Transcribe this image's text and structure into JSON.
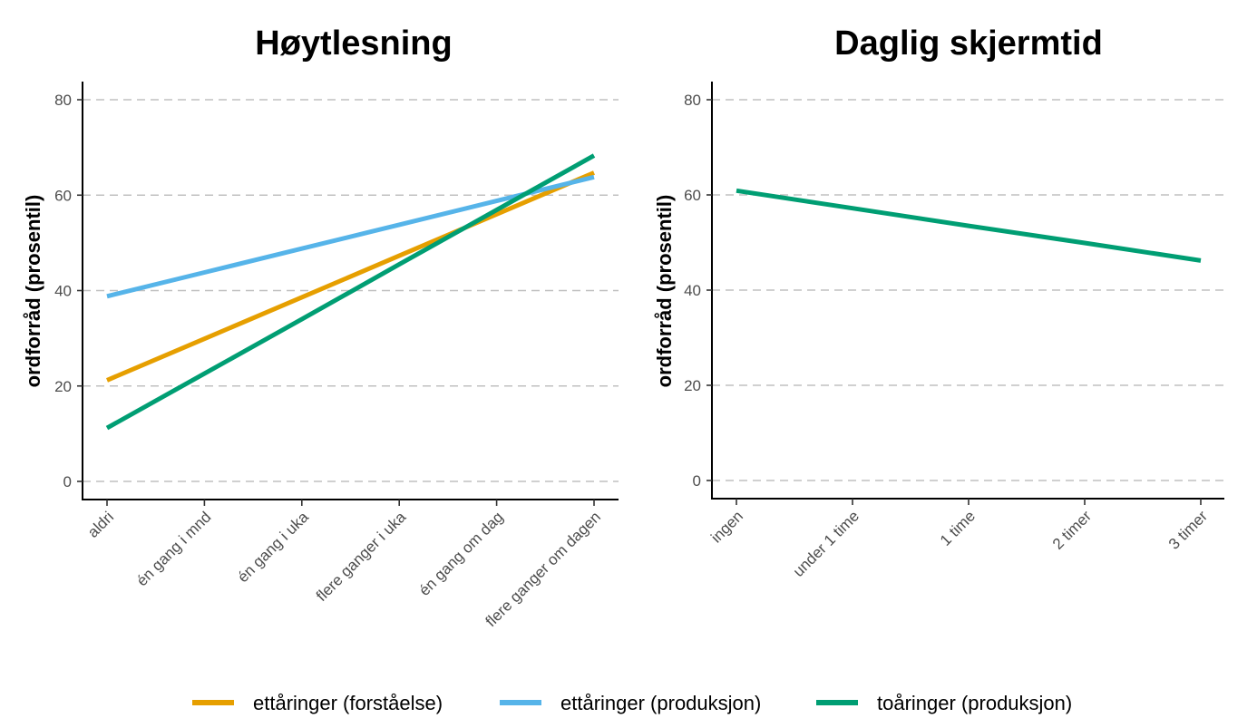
{
  "chart_data": [
    {
      "type": "line",
      "title": "Høytlesning",
      "xlabel": "",
      "ylabel": "ordforråd (prosentil)",
      "ylim": [
        0,
        80
      ],
      "yticks": [
        0,
        20,
        40,
        60,
        80
      ],
      "categories": [
        "aldri",
        "én gang i mnd",
        "én gang i uka",
        "flere ganger i uka",
        "én gang om dag",
        "flere ganger om dagen"
      ],
      "grid": "horizontal dashed",
      "series": [
        {
          "name": "ettåringer (forståelse)",
          "color": "#E69F00",
          "values": [
            21.2,
            29.9,
            38.6,
            47.3,
            56.0,
            64.7
          ]
        },
        {
          "name": "ettåringer (produksjon)",
          "color": "#56B4E9",
          "values": [
            38.8,
            43.8,
            48.8,
            53.8,
            58.8,
            63.8
          ]
        },
        {
          "name": "toåringer (produksjon)",
          "color": "#009E73",
          "values": [
            11.2,
            22.6,
            34.0,
            45.5,
            56.9,
            68.3
          ]
        }
      ]
    },
    {
      "type": "line",
      "title": "Daglig skjermtid",
      "xlabel": "",
      "ylabel": "ordforråd (prosentil)",
      "ylim": [
        0,
        80
      ],
      "yticks": [
        0,
        20,
        40,
        60,
        80
      ],
      "categories": [
        "ingen",
        "under 1 time",
        "1 time",
        "2 timer",
        "3 timer"
      ],
      "grid": "horizontal dashed",
      "series": [
        {
          "name": "toåringer (produksjon)",
          "color": "#009E73",
          "values": [
            60.9,
            57.2,
            53.5,
            49.9,
            46.2
          ]
        }
      ]
    }
  ],
  "legend": {
    "position": "bottom",
    "items": [
      {
        "label": "ettåringer (forståelse)",
        "color": "#E69F00"
      },
      {
        "label": "ettåringer (produksjon)",
        "color": "#56B4E9"
      },
      {
        "label": "toåringer (produksjon)",
        "color": "#009E73"
      }
    ]
  }
}
